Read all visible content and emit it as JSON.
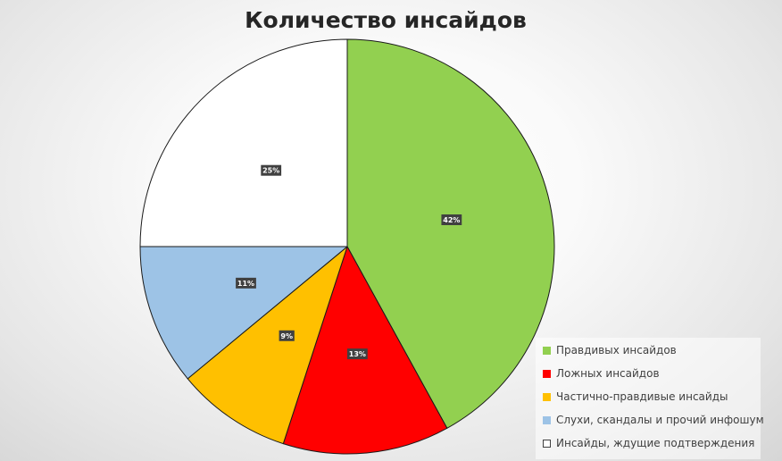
{
  "chart_data": {
    "type": "pie",
    "title": "Количество инсайдов",
    "slices": [
      {
        "label": "Правдивых инсайдов",
        "value": 42,
        "display": "42%",
        "color": "#92D050"
      },
      {
        "label": "Ложных инсайдов",
        "value": 13,
        "display": "13%",
        "color": "#FF0000"
      },
      {
        "label": "Частично-правдивые инсайды",
        "value": 9,
        "display": "9%",
        "color": "#FFC000"
      },
      {
        "label": "Слухи, скандалы и прочий инфошум",
        "value": 11,
        "display": "11%",
        "color": "#9DC3E6"
      },
      {
        "label": "Инсайды, ждущие подтверждения",
        "value": 25,
        "display": "25%",
        "color": "#FFFFFF"
      }
    ],
    "start_angle": "12 o'clock",
    "direction": "clockwise",
    "legend_position": "bottom-right"
  }
}
